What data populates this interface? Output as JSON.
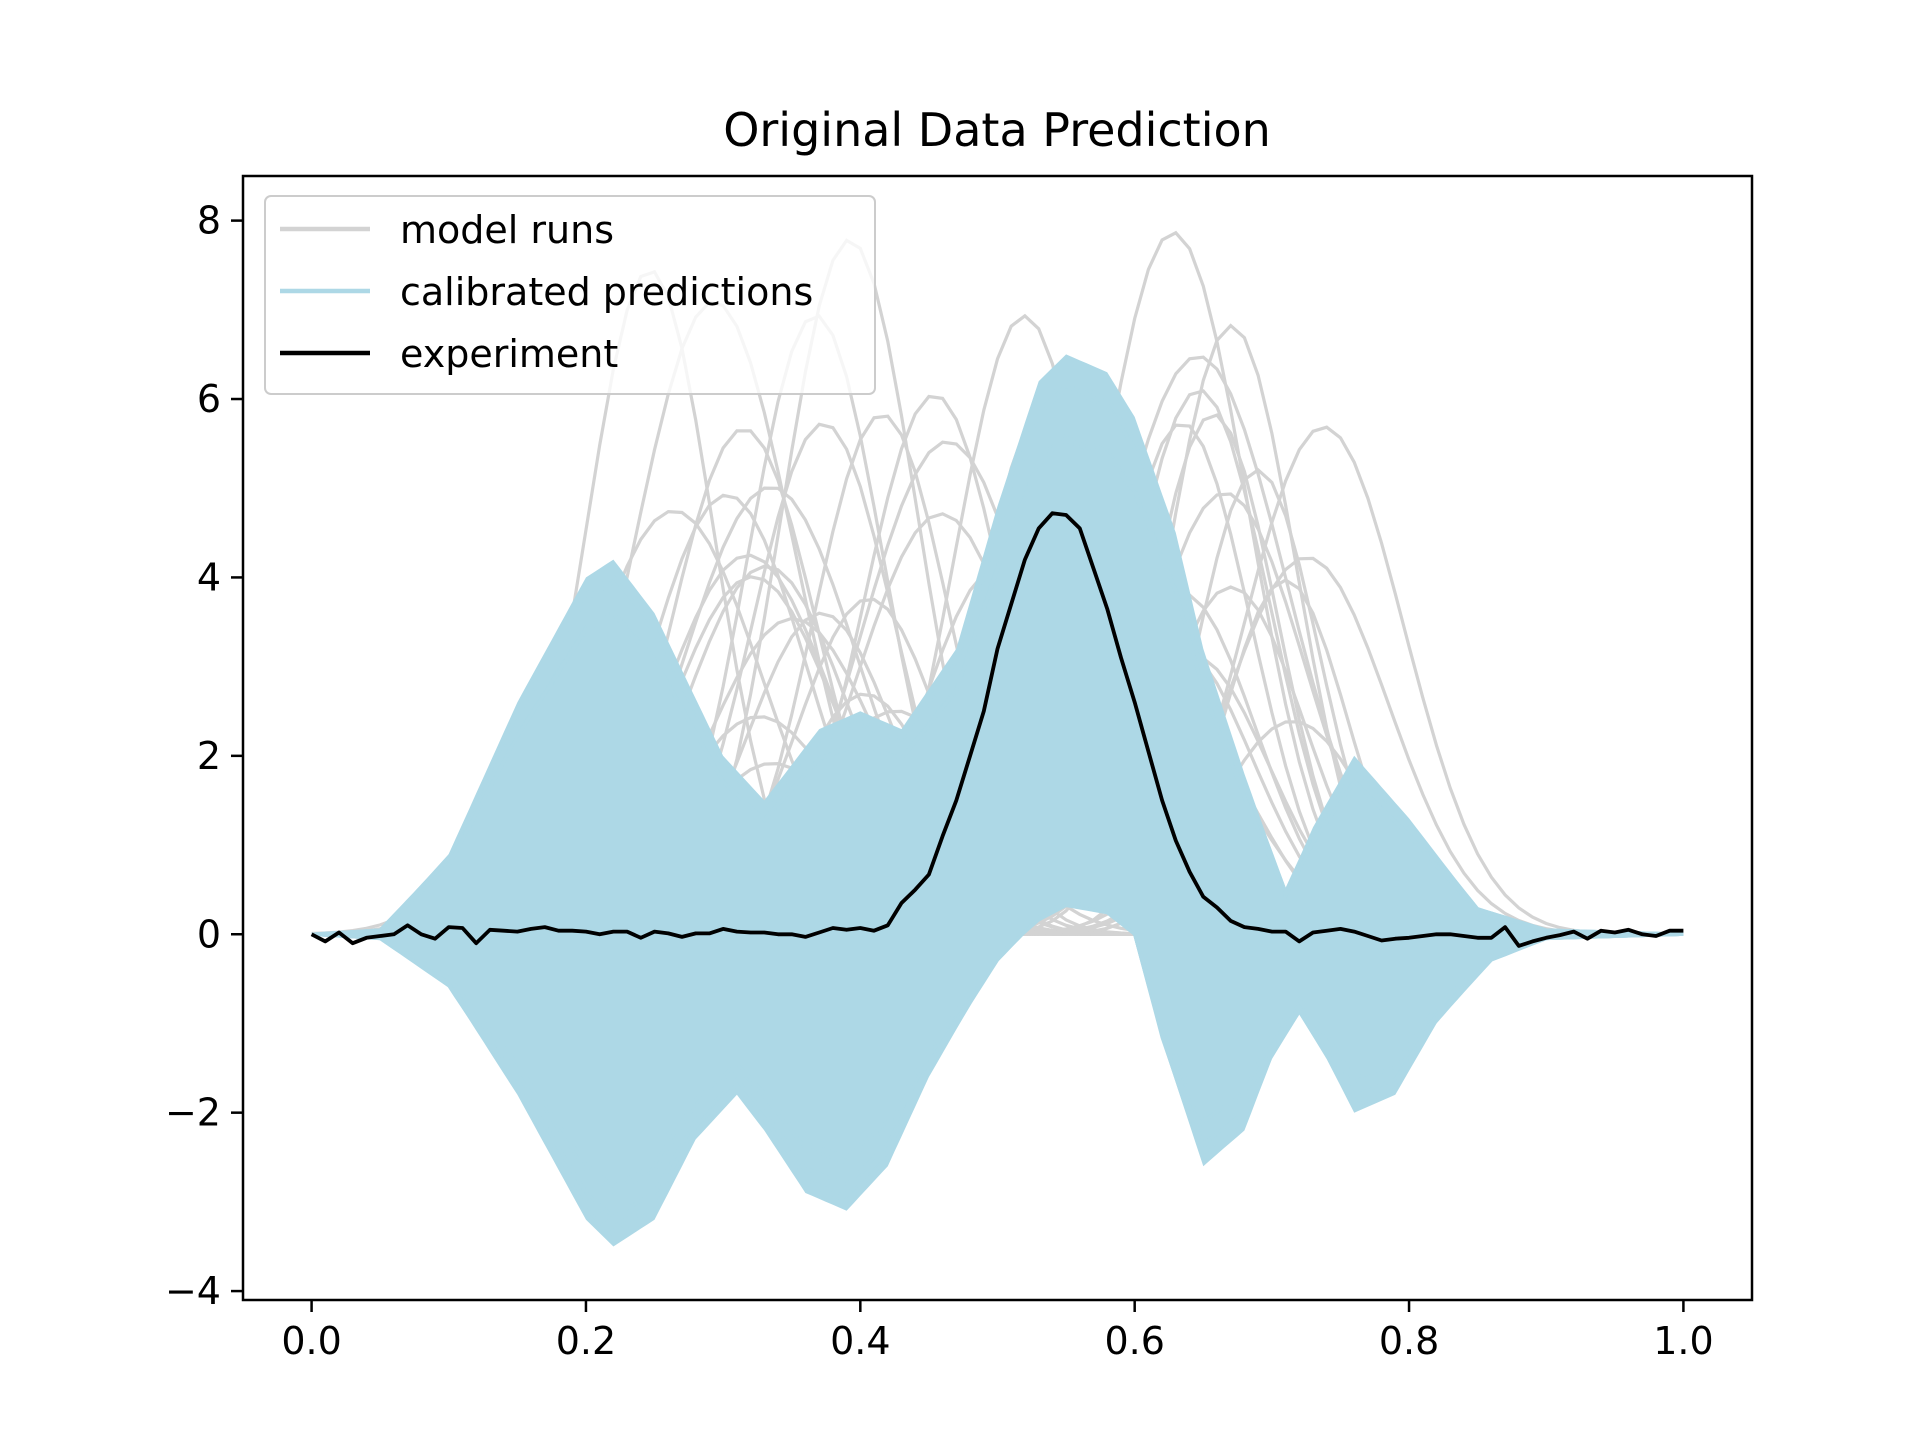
{
  "chart_data": {
    "type": "line",
    "title": "Original Data Prediction",
    "xlabel": "",
    "ylabel": "",
    "xlim": [
      -0.05,
      1.05
    ],
    "ylim": [
      -4.1,
      8.5
    ],
    "x_ticks": [
      0.0,
      0.2,
      0.4,
      0.6,
      0.8,
      1.0
    ],
    "x_tick_labels": [
      "0.0",
      "0.2",
      "0.4",
      "0.6",
      "0.8",
      "1.0"
    ],
    "y_ticks": [
      -4,
      -2,
      0,
      2,
      4,
      6,
      8
    ],
    "y_tick_labels": [
      "−4",
      "−2",
      "0",
      "2",
      "4",
      "6",
      "8"
    ],
    "grid": false,
    "legend": {
      "placement": "upper-left",
      "entries": [
        {
          "label": "model runs",
          "color": "#d3d3d3"
        },
        {
          "label": "calibrated predictions",
          "color": "#add8e6"
        },
        {
          "label": "experiment",
          "color": "#000000"
        }
      ]
    },
    "series": [
      {
        "name": "model runs",
        "kind": "family of gaussian-bump runs (approximate, grey)",
        "color": "#d3d3d3",
        "peak_centers_range": [
          0.2,
          0.74
        ],
        "peak_heights_range": [
          1.0,
          7.9
        ]
      },
      {
        "name": "calibrated predictions",
        "kind": "dense band of curves (approximate, light blue)",
        "color": "#add8e6",
        "upper_envelope": {
          "x": [
            0.0,
            0.05,
            0.1,
            0.15,
            0.2,
            0.22,
            0.25,
            0.3,
            0.33,
            0.37,
            0.4,
            0.43,
            0.47,
            0.5,
            0.53,
            0.55,
            0.58,
            0.6,
            0.63,
            0.65,
            0.68,
            0.71,
            0.73,
            0.76,
            0.8,
            0.85,
            0.9,
            1.0
          ],
          "y": [
            0.0,
            0.05,
            0.9,
            2.6,
            4.0,
            4.2,
            3.6,
            2.0,
            1.5,
            2.3,
            2.5,
            2.3,
            3.2,
            4.8,
            6.2,
            6.5,
            6.3,
            5.8,
            4.5,
            3.2,
            1.8,
            0.5,
            1.2,
            2.0,
            1.3,
            0.3,
            0.05,
            0.0
          ]
        },
        "lower_envelope": {
          "x": [
            0.0,
            0.05,
            0.1,
            0.15,
            0.2,
            0.22,
            0.25,
            0.28,
            0.31,
            0.33,
            0.36,
            0.39,
            0.42,
            0.45,
            0.48,
            0.5,
            0.53,
            0.55,
            0.58,
            0.6,
            0.62,
            0.65,
            0.68,
            0.7,
            0.72,
            0.74,
            0.76,
            0.79,
            0.82,
            0.86,
            0.9,
            1.0
          ],
          "y": [
            0.0,
            -0.05,
            -0.6,
            -1.8,
            -3.2,
            -3.5,
            -3.2,
            -2.3,
            -1.8,
            -2.2,
            -2.9,
            -3.1,
            -2.6,
            -1.6,
            -0.8,
            -0.3,
            0.2,
            0.4,
            0.3,
            0.0,
            -1.2,
            -2.6,
            -2.2,
            -1.4,
            -0.9,
            -1.4,
            -2.0,
            -1.8,
            -1.0,
            -0.3,
            -0.05,
            0.0
          ]
        }
      },
      {
        "name": "experiment",
        "kind": "measured line",
        "color": "#000000",
        "x": [
          0.0,
          0.01,
          0.02,
          0.03,
          0.04,
          0.05,
          0.06,
          0.07,
          0.08,
          0.09,
          0.1,
          0.11,
          0.12,
          0.13,
          0.14,
          0.15,
          0.16,
          0.17,
          0.18,
          0.19,
          0.2,
          0.21,
          0.22,
          0.23,
          0.24,
          0.25,
          0.26,
          0.27,
          0.28,
          0.29,
          0.3,
          0.31,
          0.32,
          0.33,
          0.34,
          0.35,
          0.36,
          0.37,
          0.38,
          0.39,
          0.4,
          0.41,
          0.42,
          0.43,
          0.44,
          0.45,
          0.46,
          0.47,
          0.48,
          0.49,
          0.5,
          0.51,
          0.52,
          0.53,
          0.54,
          0.55,
          0.56,
          0.57,
          0.58,
          0.59,
          0.6,
          0.61,
          0.62,
          0.63,
          0.64,
          0.65,
          0.66,
          0.67,
          0.68,
          0.69,
          0.7,
          0.71,
          0.72,
          0.73,
          0.74,
          0.75,
          0.76,
          0.77,
          0.78,
          0.79,
          0.8,
          0.81,
          0.82,
          0.83,
          0.84,
          0.85,
          0.86,
          0.87,
          0.88,
          0.89,
          0.9,
          0.91,
          0.92,
          0.93,
          0.94,
          0.95,
          0.96,
          0.97,
          0.98,
          0.99,
          1.0
        ],
        "y": [
          0.0,
          -0.08,
          0.02,
          -0.1,
          -0.04,
          -0.02,
          0.0,
          0.1,
          0.0,
          -0.05,
          0.08,
          0.07,
          -0.1,
          0.05,
          0.04,
          0.03,
          0.06,
          0.08,
          0.04,
          0.04,
          0.03,
          0.0,
          0.03,
          0.03,
          -0.04,
          0.03,
          0.01,
          -0.03,
          0.01,
          0.01,
          0.06,
          0.03,
          0.02,
          0.02,
          0.0,
          0.0,
          -0.03,
          0.02,
          0.07,
          0.05,
          0.07,
          0.04,
          0.1,
          0.35,
          0.5,
          0.67,
          1.1,
          1.5,
          2.0,
          2.5,
          3.2,
          3.7,
          4.2,
          4.55,
          4.72,
          4.7,
          4.55,
          4.1,
          3.65,
          3.1,
          2.6,
          2.05,
          1.5,
          1.05,
          0.7,
          0.42,
          0.3,
          0.15,
          0.08,
          0.06,
          0.03,
          0.03,
          -0.08,
          0.02,
          0.04,
          0.06,
          0.03,
          -0.02,
          -0.07,
          -0.05,
          -0.04,
          -0.02,
          0.0,
          0.0,
          -0.02,
          -0.04,
          -0.04,
          0.08,
          -0.13,
          -0.08,
          -0.04,
          -0.01,
          0.03,
          -0.05,
          0.04,
          0.02,
          0.05,
          0.0,
          -0.02,
          0.04,
          0.04
        ]
      }
    ]
  }
}
